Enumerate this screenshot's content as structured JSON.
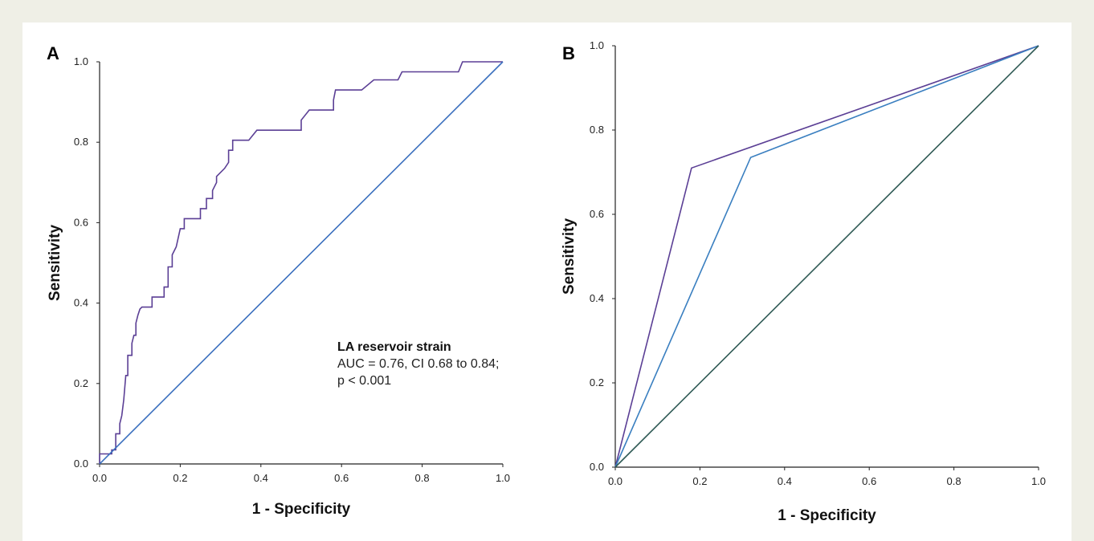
{
  "chart_data": [
    {
      "type": "line",
      "panel_label": "A",
      "xlabel": "1 - Specificity",
      "ylabel": "Sensitivity",
      "xlim": [
        0,
        1
      ],
      "ylim": [
        0,
        1
      ],
      "x_ticks": [
        "0.0",
        "0.2",
        "0.4",
        "0.6",
        "0.8",
        "1.0"
      ],
      "y_ticks": [
        "0.0",
        "0.2",
        "0.4",
        "0.6",
        "0.8",
        "1.0"
      ],
      "grid": false,
      "annotation": {
        "title": "LA reservoir strain",
        "lines": [
          "AUC = 0.76, CI 0.68 to 0.84;",
          "p < 0.001"
        ]
      },
      "series": [
        {
          "color": "#5b3f95",
          "points": [
            [
              0,
              0
            ],
            [
              0,
              0.025
            ],
            [
              0.03,
              0.025
            ],
            [
              0.03,
              0.035
            ],
            [
              0.04,
              0.035
            ],
            [
              0.04,
              0.075
            ],
            [
              0.05,
              0.075
            ],
            [
              0.05,
              0.1
            ],
            [
              0.055,
              0.12
            ],
            [
              0.06,
              0.16
            ],
            [
              0.065,
              0.22
            ],
            [
              0.07,
              0.22
            ],
            [
              0.07,
              0.27
            ],
            [
              0.08,
              0.27
            ],
            [
              0.08,
              0.3
            ],
            [
              0.085,
              0.32
            ],
            [
              0.09,
              0.32
            ],
            [
              0.09,
              0.35
            ],
            [
              0.095,
              0.37
            ],
            [
              0.1,
              0.385
            ],
            [
              0.105,
              0.39
            ],
            [
              0.13,
              0.39
            ],
            [
              0.13,
              0.415
            ],
            [
              0.16,
              0.415
            ],
            [
              0.16,
              0.44
            ],
            [
              0.17,
              0.44
            ],
            [
              0.17,
              0.49
            ],
            [
              0.18,
              0.49
            ],
            [
              0.18,
              0.52
            ],
            [
              0.19,
              0.54
            ],
            [
              0.2,
              0.585
            ],
            [
              0.21,
              0.585
            ],
            [
              0.21,
              0.61
            ],
            [
              0.25,
              0.61
            ],
            [
              0.25,
              0.635
            ],
            [
              0.265,
              0.635
            ],
            [
              0.265,
              0.66
            ],
            [
              0.28,
              0.66
            ],
            [
              0.28,
              0.68
            ],
            [
              0.29,
              0.7
            ],
            [
              0.29,
              0.715
            ],
            [
              0.31,
              0.735
            ],
            [
              0.32,
              0.75
            ],
            [
              0.32,
              0.78
            ],
            [
              0.33,
              0.78
            ],
            [
              0.33,
              0.805
            ],
            [
              0.37,
              0.805
            ],
            [
              0.39,
              0.83
            ],
            [
              0.5,
              0.83
            ],
            [
              0.5,
              0.855
            ],
            [
              0.52,
              0.88
            ],
            [
              0.58,
              0.88
            ],
            [
              0.58,
              0.905
            ],
            [
              0.585,
              0.93
            ],
            [
              0.65,
              0.93
            ],
            [
              0.68,
              0.955
            ],
            [
              0.74,
              0.955
            ],
            [
              0.75,
              0.975
            ],
            [
              0.89,
              0.975
            ],
            [
              0.9,
              1.0
            ],
            [
              1.0,
              1.0
            ]
          ]
        },
        {
          "color": "#3a6fbe",
          "points": [
            [
              0,
              0
            ],
            [
              1,
              1
            ]
          ]
        }
      ]
    },
    {
      "type": "line",
      "panel_label": "B",
      "xlabel": "1 - Specificity",
      "ylabel": "Sensitivity",
      "xlim": [
        0,
        1
      ],
      "ylim": [
        0,
        1
      ],
      "x_ticks": [
        "0.0",
        "0.2",
        "0.4",
        "0.6",
        "0.8",
        "1.0"
      ],
      "y_ticks": [
        "0.0",
        "0.2",
        "0.4",
        "0.6",
        "0.8",
        "1.0"
      ],
      "grid": false,
      "series": [
        {
          "color": "#5b3f95",
          "points": [
            [
              0,
              0
            ],
            [
              0.18,
              0.71
            ],
            [
              1,
              1
            ]
          ]
        },
        {
          "color": "#3a7fc0",
          "points": [
            [
              0,
              0
            ],
            [
              0.32,
              0.735
            ],
            [
              1,
              1
            ]
          ]
        },
        {
          "color": "#2f5a55",
          "points": [
            [
              0,
              0
            ],
            [
              1,
              1
            ]
          ]
        }
      ]
    }
  ]
}
